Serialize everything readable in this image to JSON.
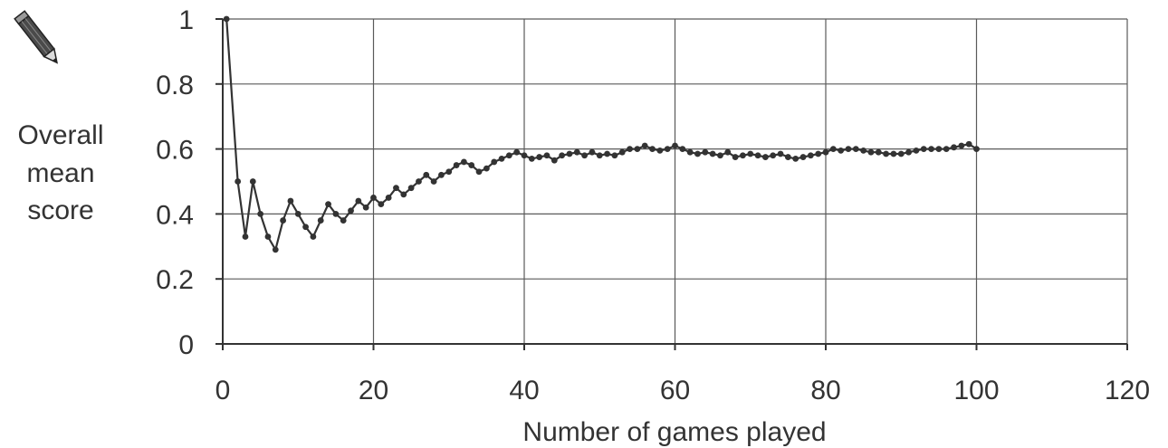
{
  "chart_data": {
    "type": "line",
    "title": "",
    "xlabel": "Number of games played",
    "ylabel_lines": [
      "Overall",
      "mean",
      "score"
    ],
    "xlim": [
      0,
      120
    ],
    "ylim": [
      0,
      1
    ],
    "xticks": [
      0,
      20,
      40,
      60,
      80,
      100,
      120
    ],
    "yticks": [
      0,
      0.2,
      0.4,
      0.6,
      0.8,
      1
    ],
    "ytick_labels": [
      "0",
      "0.2",
      "0.4",
      "0.6",
      "0.8",
      "1"
    ],
    "grid": true,
    "icon": "pencil-icon",
    "series": [
      {
        "x": [
          0.5,
          2,
          3,
          4,
          5,
          6,
          7,
          8,
          9,
          10,
          11,
          12,
          13,
          14,
          15,
          16,
          17,
          18,
          19,
          20,
          21,
          22,
          23,
          24,
          25,
          26,
          27,
          28,
          29,
          30,
          31,
          32,
          33,
          34,
          35,
          36,
          37,
          38,
          39,
          40,
          41,
          42,
          43,
          44,
          45,
          46,
          47,
          48,
          49,
          50,
          51,
          52,
          53,
          54,
          55,
          56,
          57,
          58,
          59,
          60,
          61,
          62,
          63,
          64,
          65,
          66,
          67,
          68,
          69,
          70,
          71,
          72,
          73,
          74,
          75,
          76,
          77,
          78,
          79,
          80,
          81,
          82,
          83,
          84,
          85,
          86,
          87,
          88,
          89,
          90,
          91,
          92,
          93,
          94,
          95,
          96,
          97,
          98,
          99,
          100
        ],
        "y": [
          1.0,
          0.5,
          0.33,
          0.5,
          0.4,
          0.33,
          0.29,
          0.38,
          0.44,
          0.4,
          0.36,
          0.33,
          0.38,
          0.43,
          0.4,
          0.38,
          0.41,
          0.44,
          0.42,
          0.45,
          0.43,
          0.45,
          0.48,
          0.46,
          0.48,
          0.5,
          0.52,
          0.5,
          0.52,
          0.53,
          0.55,
          0.56,
          0.55,
          0.53,
          0.54,
          0.56,
          0.57,
          0.58,
          0.59,
          0.58,
          0.57,
          0.575,
          0.58,
          0.565,
          0.58,
          0.585,
          0.59,
          0.58,
          0.59,
          0.58,
          0.585,
          0.58,
          0.59,
          0.6,
          0.6,
          0.61,
          0.6,
          0.595,
          0.6,
          0.61,
          0.6,
          0.59,
          0.585,
          0.59,
          0.585,
          0.58,
          0.59,
          0.575,
          0.58,
          0.585,
          0.58,
          0.575,
          0.58,
          0.585,
          0.575,
          0.57,
          0.575,
          0.58,
          0.585,
          0.59,
          0.6,
          0.595,
          0.6,
          0.6,
          0.595,
          0.59,
          0.59,
          0.585,
          0.585,
          0.585,
          0.59,
          0.595,
          0.6,
          0.6,
          0.6,
          0.6,
          0.605,
          0.61,
          0.615,
          0.6
        ]
      }
    ]
  }
}
